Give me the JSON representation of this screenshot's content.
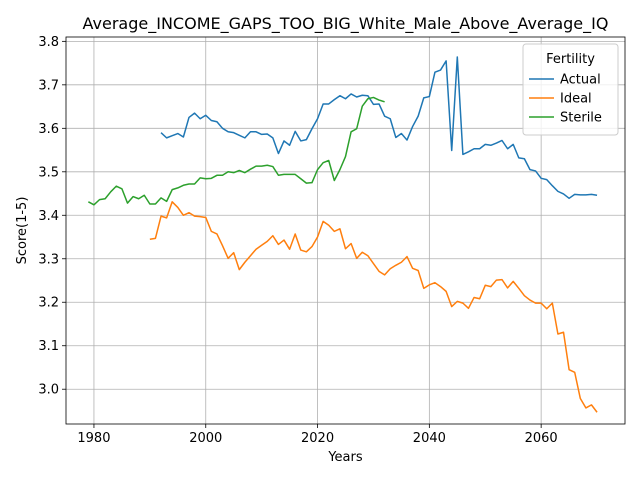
{
  "chart_data": {
    "type": "line",
    "title": "Average_INCOME_GAPS_TOO_BIG_White_Male_Above_Average_IQ",
    "xlabel": "Years",
    "ylabel": "Score(1-5)",
    "xlim": [
      1975,
      2075
    ],
    "ylim": [
      2.92,
      3.81
    ],
    "xticks": [
      1980,
      2000,
      2020,
      2040,
      2060
    ],
    "yticks": [
      3.0,
      3.1,
      3.2,
      3.3,
      3.4,
      3.5,
      3.6,
      3.7,
      3.8
    ],
    "grid": true,
    "legend": {
      "title": "Fertility",
      "position": "top-right"
    },
    "series": [
      {
        "name": "Actual",
        "color": "#1f77b4",
        "x": [
          1992,
          1993,
          1994,
          1995,
          1996,
          1997,
          1998,
          1999,
          2000,
          2001,
          2002,
          2003,
          2004,
          2005,
          2006,
          2007,
          2008,
          2009,
          2010,
          2011,
          2012,
          2013,
          2014,
          2015,
          2016,
          2017,
          2018,
          2019,
          2020,
          2021,
          2022,
          2023,
          2024,
          2025,
          2026,
          2027,
          2028,
          2029,
          2030,
          2031,
          2032,
          2033,
          2034,
          2035,
          2036,
          2037,
          2038,
          2039,
          2040,
          2041,
          2042,
          2043,
          2044,
          2045,
          2046,
          2047,
          2048,
          2049,
          2050,
          2051,
          2052,
          2053,
          2054,
          2055,
          2056,
          2057,
          2058,
          2059,
          2060,
          2061,
          2062,
          2063,
          2064,
          2065,
          2066,
          2067,
          2068,
          2069,
          2070
        ],
        "values": [
          3.59,
          3.578,
          3.583,
          3.588,
          3.58,
          3.625,
          3.635,
          3.622,
          3.63,
          3.618,
          3.615,
          3.6,
          3.592,
          3.59,
          3.584,
          3.578,
          3.592,
          3.592,
          3.586,
          3.587,
          3.578,
          3.542,
          3.571,
          3.561,
          3.593,
          3.571,
          3.574,
          3.599,
          3.622,
          3.656,
          3.656,
          3.666,
          3.675,
          3.668,
          3.679,
          3.672,
          3.676,
          3.675,
          3.655,
          3.656,
          3.628,
          3.622,
          3.579,
          3.588,
          3.573,
          3.604,
          3.628,
          3.67,
          3.673,
          3.729,
          3.734,
          3.755,
          3.549,
          3.764,
          3.54,
          3.546,
          3.553,
          3.553,
          3.563,
          3.561,
          3.566,
          3.572,
          3.553,
          3.563,
          3.532,
          3.53,
          3.505,
          3.502,
          3.485,
          3.482,
          3.468,
          3.455,
          3.449,
          3.439,
          3.448,
          3.447,
          3.447,
          3.448,
          3.446
        ]
      },
      {
        "name": "Ideal",
        "color": "#ff7f0e",
        "x": [
          1990,
          1991,
          1992,
          1993,
          1994,
          1995,
          1996,
          1997,
          1998,
          1999,
          2000,
          2001,
          2002,
          2003,
          2004,
          2005,
          2006,
          2007,
          2008,
          2009,
          2010,
          2011,
          2012,
          2013,
          2014,
          2015,
          2016,
          2017,
          2018,
          2019,
          2020,
          2021,
          2022,
          2023,
          2024,
          2025,
          2026,
          2027,
          2028,
          2029,
          2030,
          2031,
          2032,
          2033,
          2034,
          2035,
          2036,
          2037,
          2038,
          2039,
          2040,
          2041,
          2042,
          2043,
          2044,
          2045,
          2046,
          2047,
          2048,
          2049,
          2050,
          2051,
          2052,
          2053,
          2054,
          2055,
          2056,
          2057,
          2058,
          2059,
          2060,
          2061,
          2062,
          2063,
          2064,
          2065,
          2066,
          2067,
          2068,
          2069,
          2070
        ],
        "values": [
          3.345,
          3.347,
          3.398,
          3.394,
          3.431,
          3.418,
          3.4,
          3.406,
          3.398,
          3.397,
          3.395,
          3.363,
          3.357,
          3.33,
          3.301,
          3.314,
          3.275,
          3.292,
          3.307,
          3.322,
          3.331,
          3.34,
          3.353,
          3.333,
          3.343,
          3.322,
          3.357,
          3.32,
          3.316,
          3.328,
          3.35,
          3.386,
          3.377,
          3.363,
          3.369,
          3.323,
          3.335,
          3.301,
          3.315,
          3.307,
          3.289,
          3.271,
          3.263,
          3.277,
          3.285,
          3.292,
          3.305,
          3.278,
          3.273,
          3.232,
          3.24,
          3.245,
          3.236,
          3.225,
          3.19,
          3.202,
          3.198,
          3.186,
          3.211,
          3.208,
          3.239,
          3.236,
          3.251,
          3.252,
          3.233,
          3.248,
          3.232,
          3.215,
          3.205,
          3.198,
          3.198,
          3.185,
          3.198,
          3.127,
          3.131,
          3.045,
          3.039,
          2.979,
          2.957,
          2.964,
          2.947
        ]
      },
      {
        "name": "Sterile",
        "color": "#2ca02c",
        "x": [
          1979,
          1980,
          1981,
          1982,
          1983,
          1984,
          1985,
          1986,
          1987,
          1988,
          1989,
          1990,
          1991,
          1992,
          1993,
          1994,
          1995,
          1996,
          1997,
          1998,
          1999,
          2000,
          2001,
          2002,
          2003,
          2004,
          2005,
          2006,
          2007,
          2008,
          2009,
          2010,
          2011,
          2012,
          2013,
          2014,
          2015,
          2016,
          2017,
          2018,
          2019,
          2020,
          2021,
          2022,
          2023,
          2024,
          2025,
          2026,
          2027,
          2028,
          2029,
          2030,
          2031,
          2032
        ],
        "values": [
          3.431,
          3.424,
          3.436,
          3.438,
          3.454,
          3.467,
          3.461,
          3.428,
          3.443,
          3.438,
          3.446,
          3.426,
          3.426,
          3.44,
          3.432,
          3.459,
          3.463,
          3.469,
          3.472,
          3.472,
          3.486,
          3.484,
          3.485,
          3.492,
          3.492,
          3.5,
          3.498,
          3.503,
          3.498,
          3.506,
          3.513,
          3.513,
          3.515,
          3.512,
          3.492,
          3.494,
          3.494,
          3.494,
          3.484,
          3.474,
          3.475,
          3.505,
          3.521,
          3.526,
          3.48,
          3.505,
          3.535,
          3.592,
          3.599,
          3.651,
          3.668,
          3.671,
          3.665,
          3.661
        ]
      }
    ]
  }
}
